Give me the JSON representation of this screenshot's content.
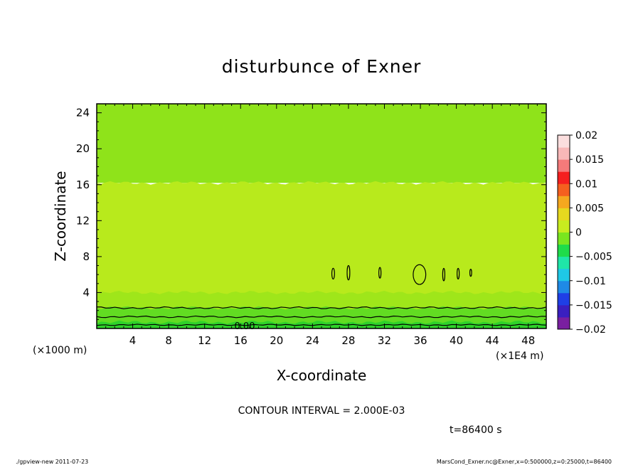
{
  "chart_data": {
    "type": "heatmap",
    "title": "disturbunce of Exner",
    "xlabel": "X-coordinate",
    "ylabel": "Z-coordinate",
    "xunit_left": "(×1000 m)",
    "xunit_right": "(×1E4 m)",
    "xlim": [
      0,
      50
    ],
    "ylim": [
      0,
      25
    ],
    "xticks": [
      4,
      8,
      12,
      16,
      20,
      24,
      28,
      32,
      36,
      40,
      44,
      48
    ],
    "yticks": [
      4,
      8,
      12,
      16,
      20,
      24
    ],
    "colorbar": {
      "ticks": [
        "0.02",
        "0.015",
        "0.01",
        "0.005",
        "0",
        "−0.005",
        "−0.01",
        "−0.015",
        "−0.02"
      ],
      "range": [
        -0.02,
        0.02
      ],
      "colors": [
        "#7a1fa0",
        "#3a1fc0",
        "#1f3fe6",
        "#1f8ae6",
        "#1fc8e6",
        "#1fe6a8",
        "#1fdc4a",
        "#7ae61f",
        "#c8ec1f",
        "#e6d81f",
        "#f5a81f",
        "#f5601f",
        "#f51f1f",
        "#f57a7a",
        "#f8b8b8",
        "#fbdede"
      ],
      "regions": [
        {
          "z_top": 25,
          "z_bottom": 16.2,
          "color": "#8fe31a"
        },
        {
          "z_top": 16.2,
          "z_bottom": 4.0,
          "color": "#b8ea1c"
        },
        {
          "z_top": 4.0,
          "z_bottom": 2.3,
          "color": "#9fe61a"
        },
        {
          "z_top": 2.3,
          "z_bottom": 0.7,
          "color": "#62dc22"
        },
        {
          "z_top": 0.7,
          "z_bottom": 0,
          "color": "#2fd22a"
        }
      ]
    },
    "contour_label": "0.00",
    "contour_interval_text": "CONTOUR INTERVAL = 2.000E-03",
    "time_text": "t=86400 s"
  },
  "footer": {
    "left": "./gpview-new   2011-07-23",
    "right": "MarsCond_Exner.nc@Exner,x=0:500000,z=0:25000,t=86400"
  }
}
